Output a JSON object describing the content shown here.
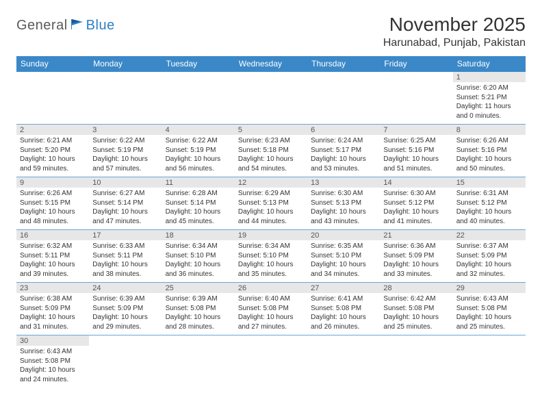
{
  "logo": {
    "part1": "General",
    "part2": "Blue"
  },
  "title": "November 2025",
  "location": "Harunabad, Punjab, Pakistan",
  "colors": {
    "header_bg": "#3b88c8",
    "header_text": "#ffffff",
    "row_divider": "#6aa5d9",
    "daynum_bg": "#e7e7e7",
    "logo_gray": "#5a5a5a",
    "logo_blue": "#2c7fc4",
    "text": "#333333",
    "background": "#ffffff"
  },
  "weekdays": [
    "Sunday",
    "Monday",
    "Tuesday",
    "Wednesday",
    "Thursday",
    "Friday",
    "Saturday"
  ],
  "grid": [
    [
      null,
      null,
      null,
      null,
      null,
      null,
      {
        "n": "1",
        "sunrise": "6:20 AM",
        "sunset": "5:21 PM",
        "day_h": 11,
        "day_m": 0
      }
    ],
    [
      {
        "n": "2",
        "sunrise": "6:21 AM",
        "sunset": "5:20 PM",
        "day_h": 10,
        "day_m": 59
      },
      {
        "n": "3",
        "sunrise": "6:22 AM",
        "sunset": "5:19 PM",
        "day_h": 10,
        "day_m": 57
      },
      {
        "n": "4",
        "sunrise": "6:22 AM",
        "sunset": "5:19 PM",
        "day_h": 10,
        "day_m": 56
      },
      {
        "n": "5",
        "sunrise": "6:23 AM",
        "sunset": "5:18 PM",
        "day_h": 10,
        "day_m": 54
      },
      {
        "n": "6",
        "sunrise": "6:24 AM",
        "sunset": "5:17 PM",
        "day_h": 10,
        "day_m": 53
      },
      {
        "n": "7",
        "sunrise": "6:25 AM",
        "sunset": "5:16 PM",
        "day_h": 10,
        "day_m": 51
      },
      {
        "n": "8",
        "sunrise": "6:26 AM",
        "sunset": "5:16 PM",
        "day_h": 10,
        "day_m": 50
      }
    ],
    [
      {
        "n": "9",
        "sunrise": "6:26 AM",
        "sunset": "5:15 PM",
        "day_h": 10,
        "day_m": 48
      },
      {
        "n": "10",
        "sunrise": "6:27 AM",
        "sunset": "5:14 PM",
        "day_h": 10,
        "day_m": 47
      },
      {
        "n": "11",
        "sunrise": "6:28 AM",
        "sunset": "5:14 PM",
        "day_h": 10,
        "day_m": 45
      },
      {
        "n": "12",
        "sunrise": "6:29 AM",
        "sunset": "5:13 PM",
        "day_h": 10,
        "day_m": 44
      },
      {
        "n": "13",
        "sunrise": "6:30 AM",
        "sunset": "5:13 PM",
        "day_h": 10,
        "day_m": 43
      },
      {
        "n": "14",
        "sunrise": "6:30 AM",
        "sunset": "5:12 PM",
        "day_h": 10,
        "day_m": 41
      },
      {
        "n": "15",
        "sunrise": "6:31 AM",
        "sunset": "5:12 PM",
        "day_h": 10,
        "day_m": 40
      }
    ],
    [
      {
        "n": "16",
        "sunrise": "6:32 AM",
        "sunset": "5:11 PM",
        "day_h": 10,
        "day_m": 39
      },
      {
        "n": "17",
        "sunrise": "6:33 AM",
        "sunset": "5:11 PM",
        "day_h": 10,
        "day_m": 38
      },
      {
        "n": "18",
        "sunrise": "6:34 AM",
        "sunset": "5:10 PM",
        "day_h": 10,
        "day_m": 36
      },
      {
        "n": "19",
        "sunrise": "6:34 AM",
        "sunset": "5:10 PM",
        "day_h": 10,
        "day_m": 35
      },
      {
        "n": "20",
        "sunrise": "6:35 AM",
        "sunset": "5:10 PM",
        "day_h": 10,
        "day_m": 34
      },
      {
        "n": "21",
        "sunrise": "6:36 AM",
        "sunset": "5:09 PM",
        "day_h": 10,
        "day_m": 33
      },
      {
        "n": "22",
        "sunrise": "6:37 AM",
        "sunset": "5:09 PM",
        "day_h": 10,
        "day_m": 32
      }
    ],
    [
      {
        "n": "23",
        "sunrise": "6:38 AM",
        "sunset": "5:09 PM",
        "day_h": 10,
        "day_m": 31
      },
      {
        "n": "24",
        "sunrise": "6:39 AM",
        "sunset": "5:09 PM",
        "day_h": 10,
        "day_m": 29
      },
      {
        "n": "25",
        "sunrise": "6:39 AM",
        "sunset": "5:08 PM",
        "day_h": 10,
        "day_m": 28
      },
      {
        "n": "26",
        "sunrise": "6:40 AM",
        "sunset": "5:08 PM",
        "day_h": 10,
        "day_m": 27
      },
      {
        "n": "27",
        "sunrise": "6:41 AM",
        "sunset": "5:08 PM",
        "day_h": 10,
        "day_m": 26
      },
      {
        "n": "28",
        "sunrise": "6:42 AM",
        "sunset": "5:08 PM",
        "day_h": 10,
        "day_m": 25
      },
      {
        "n": "29",
        "sunrise": "6:43 AM",
        "sunset": "5:08 PM",
        "day_h": 10,
        "day_m": 25
      }
    ],
    [
      {
        "n": "30",
        "sunrise": "6:43 AM",
        "sunset": "5:08 PM",
        "day_h": 10,
        "day_m": 24
      },
      null,
      null,
      null,
      null,
      null,
      null
    ]
  ]
}
